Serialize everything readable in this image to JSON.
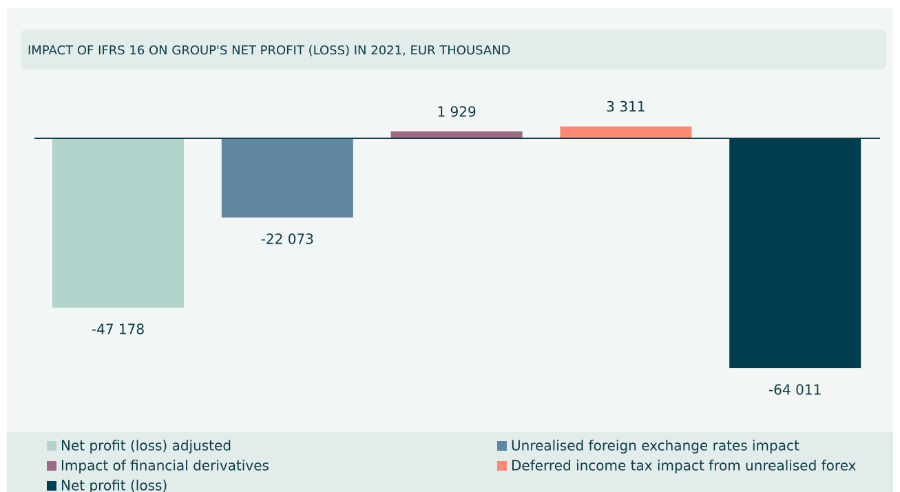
{
  "chart_data": {
    "type": "bar",
    "title": "IMPACT OF IFRS 16 ON GROUP'S NET PROFIT (LOSS) IN 2021, EUR THOUSAND",
    "ylim": [
      -70000,
      10000
    ],
    "series": [
      {
        "name": "Net profit (loss) adjusted",
        "color": "#b2d3cc",
        "values": [
          -47178
        ],
        "value_labels": [
          "-47 178"
        ]
      },
      {
        "name": "Unrealised foreign exchange rates impact",
        "color": "#5f87a0",
        "values": [
          -22073
        ],
        "value_labels": [
          "-22 073"
        ]
      },
      {
        "name": "Impact of financial derivatives",
        "color": "#9e6a84",
        "values": [
          1929
        ],
        "value_labels": [
          "1 929"
        ]
      },
      {
        "name": "Deferred income tax impact from unrealised forex",
        "color": "#fb8a74",
        "values": [
          3311
        ],
        "value_labels": [
          "3 311"
        ]
      },
      {
        "name": "Net profit (loss)",
        "color": "#003d4f",
        "values": [
          -64011
        ],
        "value_labels": [
          "-64 011"
        ]
      }
    ]
  }
}
